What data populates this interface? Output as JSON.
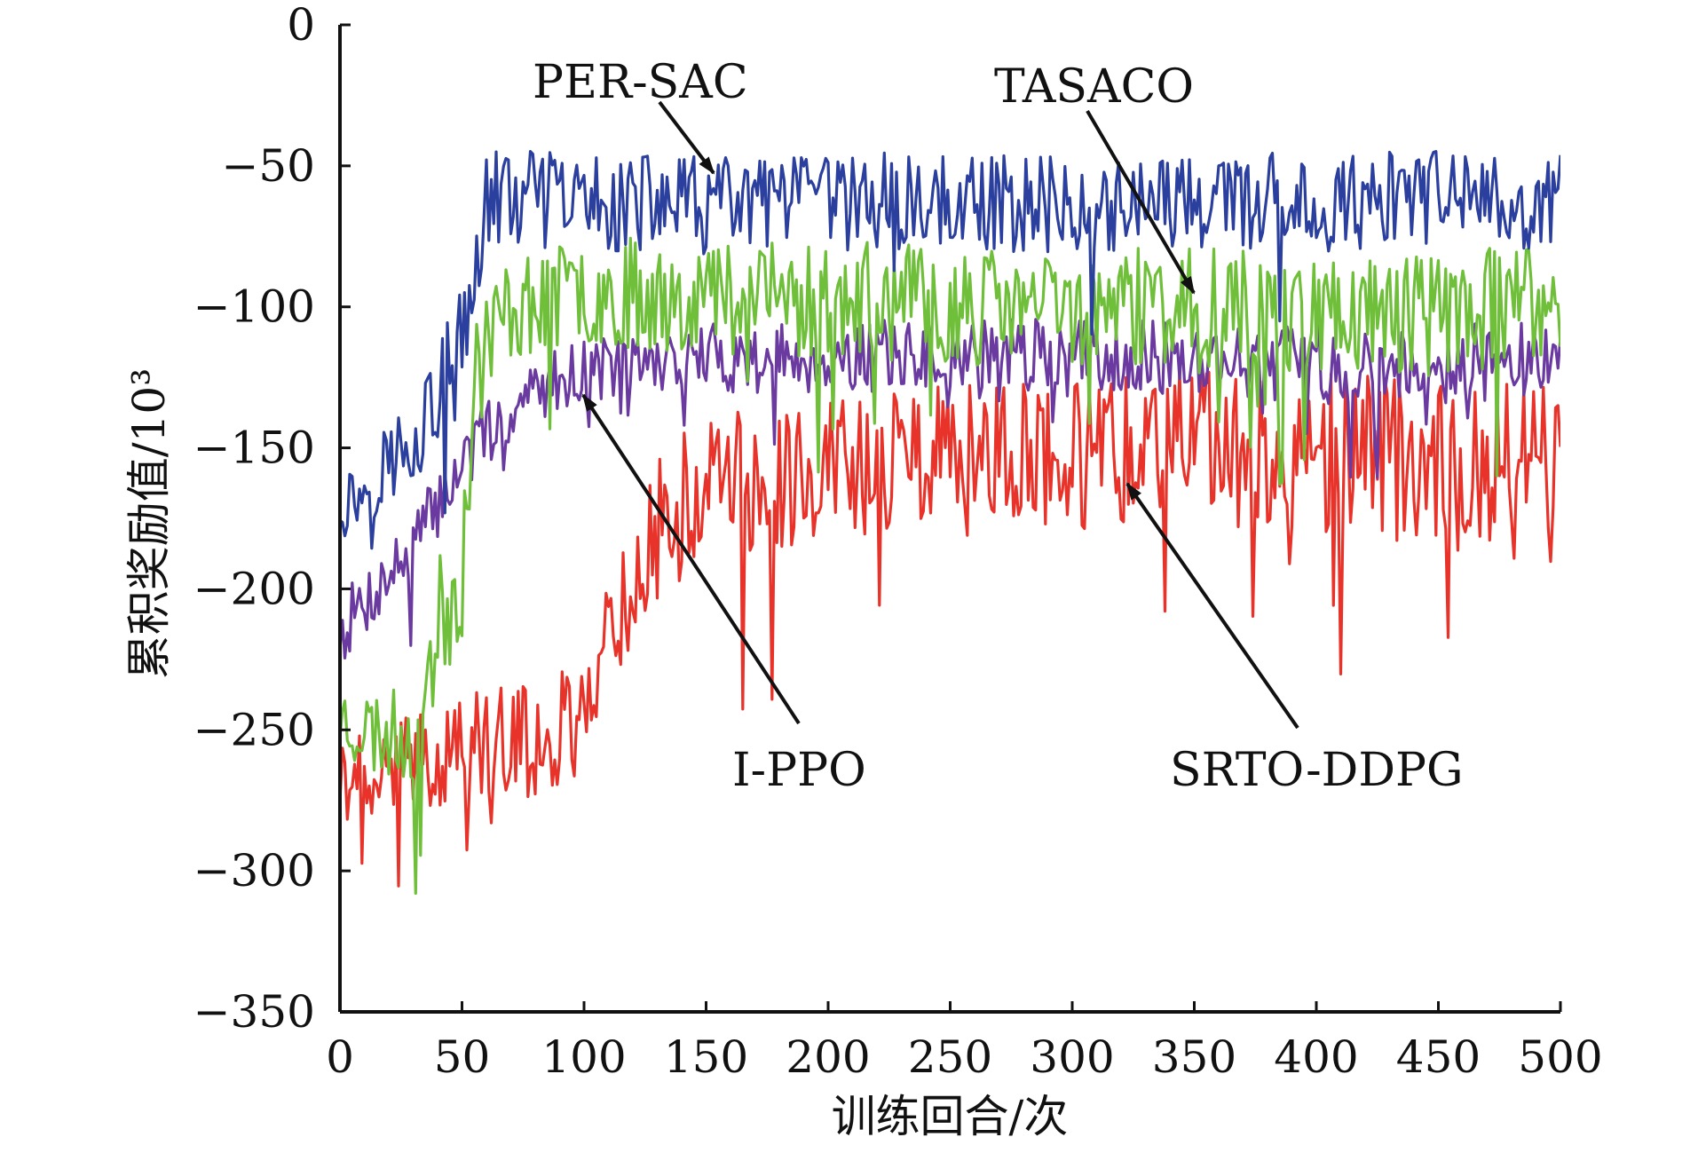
{
  "chart_data": {
    "type": "line",
    "title": "",
    "xlabel": "训练回合/次",
    "ylabel": "累积奖励值/10³",
    "xlim": [
      0,
      500
    ],
    "ylim": [
      -350,
      0
    ],
    "xticks": [
      0,
      50,
      100,
      150,
      200,
      250,
      300,
      350,
      400,
      450,
      500
    ],
    "yticks": [
      0,
      -50,
      -100,
      -150,
      -200,
      -250,
      -300,
      -350
    ],
    "xtick_labels": [
      "0",
      "50",
      "100",
      "150",
      "200",
      "250",
      "300",
      "350",
      "400",
      "450",
      "500"
    ],
    "ytick_labels": [
      "0",
      "−50",
      "−100",
      "−150",
      "−200",
      "−250",
      "−300",
      "−350"
    ],
    "grid": false,
    "legend": "none (series labelled by annotation arrows)",
    "colors": {
      "PER-SAC": "#2b3f9e",
      "TASACO": "#6fbf3a",
      "I-PPO": "#6a3aa0",
      "SRTO-DDPG": "#e8332a"
    },
    "series": [
      {
        "name": "PER-SAC",
        "color": "#2b3f9e",
        "x": [
          0,
          5,
          10,
          15,
          20,
          25,
          30,
          35,
          40,
          45,
          50,
          55,
          60,
          70,
          80,
          90,
          100,
          120,
          150,
          180,
          200,
          250,
          300,
          350,
          400,
          450,
          500
        ],
        "mean": [
          -170,
          -168,
          -165,
          -160,
          -155,
          -150,
          -145,
          -140,
          -132,
          -125,
          -118,
          -90,
          -62,
          -62,
          -62,
          -63,
          -63,
          -63,
          -64,
          -64,
          -63,
          -63,
          -63,
          -63,
          -63,
          -62,
          -63
        ],
        "noise": [
          8,
          8,
          8,
          9,
          10,
          10,
          10,
          12,
          13,
          14,
          15,
          14,
          11,
          11,
          11,
          11,
          11,
          11,
          11,
          11,
          11,
          11,
          11,
          11,
          11,
          11,
          11
        ]
      },
      {
        "name": "TASACO",
        "color": "#6fbf3a",
        "x": [
          0,
          10,
          20,
          30,
          40,
          50,
          55,
          60,
          70,
          80,
          100,
          150,
          200,
          250,
          300,
          350,
          400,
          450,
          500
        ],
        "mean": [
          -245,
          -250,
          -252,
          -250,
          -215,
          -190,
          -130,
          -110,
          -100,
          -98,
          -95,
          -95,
          -98,
          -100,
          -100,
          -100,
          -102,
          -102,
          -100
        ],
        "noise": [
          9,
          10,
          10,
          12,
          15,
          18,
          15,
          12,
          12,
          12,
          12,
          13,
          14,
          13,
          13,
          13,
          14,
          14,
          14
        ]
      },
      {
        "name": "I-PPO",
        "color": "#6a3aa0",
        "x": [
          0,
          10,
          20,
          30,
          40,
          50,
          60,
          70,
          80,
          90,
          100,
          150,
          200,
          250,
          300,
          350,
          400,
          450,
          500
        ],
        "mean": [
          -215,
          -205,
          -195,
          -185,
          -170,
          -155,
          -145,
          -138,
          -130,
          -125,
          -122,
          -118,
          -118,
          -117,
          -117,
          -118,
          -120,
          -120,
          -120
        ],
        "noise": [
          8,
          8,
          8,
          8,
          8,
          8,
          7,
          7,
          7,
          7,
          7,
          8,
          8,
          8,
          8,
          8,
          9,
          9,
          9
        ]
      },
      {
        "name": "SRTO-DDPG",
        "color": "#e8332a",
        "x": [
          0,
          20,
          40,
          60,
          80,
          100,
          105,
          110,
          120,
          130,
          150,
          170,
          200,
          250,
          300,
          350,
          400,
          450,
          500
        ],
        "mean": [
          -268,
          -265,
          -258,
          -255,
          -255,
          -245,
          -225,
          -215,
          -200,
          -180,
          -162,
          -160,
          -158,
          -155,
          -152,
          -150,
          -152,
          -155,
          -160
        ],
        "noise": [
          9,
          10,
          12,
          13,
          13,
          14,
          14,
          14,
          15,
          16,
          17,
          17,
          17,
          17,
          17,
          17,
          18,
          19,
          20
        ]
      }
    ],
    "annotations": [
      {
        "label": "PER-SAC",
        "points_to": {
          "x": 153,
          "y": -55
        }
      },
      {
        "label": "TASACO",
        "points_to": {
          "x": 350,
          "y": -95
        }
      },
      {
        "label": "I-PPO",
        "points_to": {
          "x": 100,
          "y": -133
        }
      },
      {
        "label": "SRTO-DDPG",
        "points_to": {
          "x": 325,
          "y": -162
        }
      }
    ]
  }
}
